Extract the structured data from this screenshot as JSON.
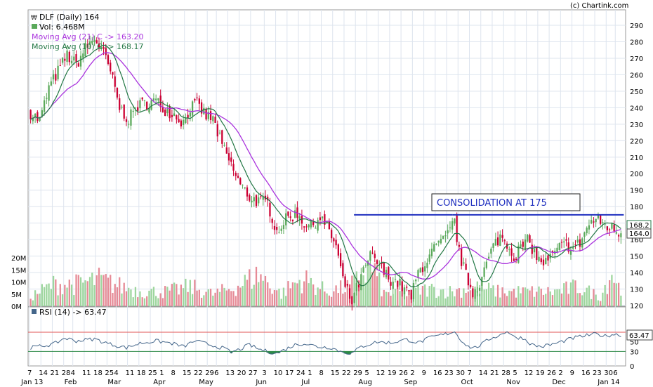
{
  "copyright": "(c) Chartink.com",
  "legend": {
    "symbol": "DLF (Daily) 164",
    "volume": "Vol: 6.468M",
    "ma21": "Moving Avg (21) C -> 163.20",
    "ma10": "Moving Avg (10) C -> 168.17",
    "rsi": "RSI (14) -> 63.47"
  },
  "annotation": {
    "text": "CONSOLIDATION AT 175",
    "level": 175
  },
  "colors": {
    "up": "#5aa95a",
    "down": "#cc0033",
    "ma21": "#aa33dd",
    "ma10": "#227744",
    "annotation_line": "#1f2fbf",
    "volume_up": "#9dd69d",
    "volume_down": "#e68a96",
    "rsi_line": "#44668a",
    "rsi_overbought": "#e05555",
    "rsi_oversold": "#2d8a47"
  },
  "chart_data": {
    "type": "candlestick",
    "price_axis": {
      "min": 120,
      "max": 290,
      "ticks": [
        120,
        130,
        140,
        150,
        160,
        170,
        180,
        190,
        200,
        210,
        220,
        230,
        240,
        250,
        260,
        270,
        280,
        290
      ]
    },
    "price_labels": {
      "last_ma10": "168.2",
      "last_close": "164.0"
    },
    "volume_axis": {
      "ticks": [
        "0M",
        "5M",
        "10M",
        "15M",
        "20M"
      ],
      "values": [
        0,
        5,
        10,
        15,
        20
      ]
    },
    "rsi_axis": {
      "ticks": [
        0,
        30,
        50,
        70
      ],
      "levels": {
        "overbought": 70,
        "oversold": 30
      },
      "last_label": "63.47"
    },
    "x_day_labels": [
      "7",
      "14",
      "21",
      "28",
      "4",
      "11",
      "18",
      "25",
      "4",
      "11",
      "18",
      "25",
      "1",
      "8",
      "15",
      "22",
      "29",
      "6",
      "13",
      "20",
      "27",
      "3",
      "10",
      "17",
      "24",
      "1",
      "8",
      "15",
      "22",
      "29",
      "5",
      "12",
      "19",
      "26",
      "2",
      "9",
      "16",
      "23",
      "30",
      "7",
      "14",
      "21",
      "28",
      "5",
      "12",
      "19",
      "26",
      "2",
      "9",
      "16",
      "23",
      "30",
      "6"
    ],
    "x_day_positions": [
      0,
      5,
      10,
      15,
      19,
      24,
      29,
      34,
      38,
      43,
      48,
      53,
      58,
      63,
      68,
      73,
      78,
      82,
      87,
      92,
      97,
      103,
      108,
      113,
      118,
      123,
      128,
      133,
      138,
      143,
      148,
      153,
      158,
      163,
      168,
      173,
      178,
      183,
      188,
      193,
      198,
      203,
      208,
      213,
      218,
      223,
      228,
      233,
      238,
      243,
      248,
      253,
      257
    ],
    "x_month_labels": [
      "Jan 13",
      "Feb",
      "Mar",
      "Apr",
      "May",
      "Jun",
      "Jul",
      "Aug",
      "Sep",
      "Oct",
      "Nov",
      "Dec",
      "Jan 14"
    ],
    "x_month_positions": [
      0,
      19,
      38,
      58,
      78,
      103,
      123,
      148,
      168,
      193,
      213,
      233,
      253
    ],
    "bars": 260,
    "close_anchors": [
      [
        0,
        237
      ],
      [
        4,
        232
      ],
      [
        8,
        252
      ],
      [
        12,
        262
      ],
      [
        16,
        272
      ],
      [
        20,
        266
      ],
      [
        24,
        276
      ],
      [
        28,
        282
      ],
      [
        31,
        276
      ],
      [
        35,
        262
      ],
      [
        39,
        240
      ],
      [
        43,
        233
      ],
      [
        47,
        241
      ],
      [
        51,
        243
      ],
      [
        55,
        244
      ],
      [
        59,
        239
      ],
      [
        63,
        236
      ],
      [
        67,
        231
      ],
      [
        70,
        240
      ],
      [
        73,
        242
      ],
      [
        77,
        235
      ],
      [
        80,
        233
      ],
      [
        84,
        217
      ],
      [
        88,
        205
      ],
      [
        92,
        193
      ],
      [
        96,
        186
      ],
      [
        100,
        183
      ],
      [
        104,
        182
      ],
      [
        108,
        165
      ],
      [
        111,
        171
      ],
      [
        114,
        174
      ],
      [
        117,
        176
      ],
      [
        120,
        170
      ],
      [
        123,
        168
      ],
      [
        127,
        174
      ],
      [
        131,
        165
      ],
      [
        134,
        156
      ],
      [
        137,
        135
      ],
      [
        141,
        122
      ],
      [
        143,
        130
      ],
      [
        146,
        140
      ],
      [
        149,
        150
      ],
      [
        152,
        146
      ],
      [
        155,
        140
      ],
      [
        158,
        136
      ],
      [
        161,
        134
      ],
      [
        164,
        130
      ],
      [
        167,
        125
      ],
      [
        170,
        140
      ],
      [
        174,
        148
      ],
      [
        178,
        156
      ],
      [
        182,
        160
      ],
      [
        186,
        171
      ],
      [
        188,
        152
      ],
      [
        191,
        138
      ],
      [
        194,
        128
      ],
      [
        197,
        134
      ],
      [
        200,
        145
      ],
      [
        203,
        156
      ],
      [
        206,
        162
      ],
      [
        209,
        158
      ],
      [
        212,
        150
      ],
      [
        215,
        155
      ],
      [
        218,
        159
      ],
      [
        220,
        155
      ],
      [
        223,
        147
      ],
      [
        226,
        146
      ],
      [
        229,
        150
      ],
      [
        232,
        155
      ],
      [
        235,
        157
      ],
      [
        238,
        155
      ],
      [
        241,
        158
      ],
      [
        244,
        167
      ],
      [
        247,
        172
      ],
      [
        250,
        171
      ],
      [
        253,
        168
      ],
      [
        256,
        166
      ],
      [
        259,
        164
      ]
    ],
    "volume_anchors": [
      [
        0,
        4
      ],
      [
        10,
        9
      ],
      [
        20,
        9
      ],
      [
        30,
        11
      ],
      [
        40,
        8
      ],
      [
        50,
        6
      ],
      [
        60,
        6
      ],
      [
        70,
        8
      ],
      [
        80,
        5
      ],
      [
        90,
        8
      ],
      [
        100,
        13
      ],
      [
        110,
        5
      ],
      [
        115,
        9
      ],
      [
        120,
        11
      ],
      [
        130,
        6
      ],
      [
        140,
        8
      ],
      [
        145,
        12
      ],
      [
        150,
        16
      ],
      [
        155,
        5
      ],
      [
        165,
        6
      ],
      [
        175,
        7
      ],
      [
        185,
        6
      ],
      [
        195,
        8
      ],
      [
        205,
        6
      ],
      [
        210,
        6
      ],
      [
        220,
        6
      ],
      [
        230,
        6
      ],
      [
        240,
        8
      ],
      [
        250,
        4
      ],
      [
        255,
        14
      ],
      [
        259,
        6
      ]
    ],
    "rsi_anchors": [
      [
        0,
        38
      ],
      [
        10,
        45
      ],
      [
        15,
        58
      ],
      [
        20,
        52
      ],
      [
        28,
        56
      ],
      [
        35,
        45
      ],
      [
        42,
        38
      ],
      [
        48,
        47
      ],
      [
        55,
        52
      ],
      [
        62,
        47
      ],
      [
        67,
        40
      ],
      [
        72,
        52
      ],
      [
        78,
        45
      ],
      [
        85,
        36
      ],
      [
        88,
        28
      ],
      [
        92,
        35
      ],
      [
        96,
        44
      ],
      [
        100,
        35
      ],
      [
        104,
        30
      ],
      [
        108,
        26
      ],
      [
        112,
        35
      ],
      [
        116,
        44
      ],
      [
        120,
        47
      ],
      [
        126,
        40
      ],
      [
        132,
        38
      ],
      [
        136,
        30
      ],
      [
        141,
        26
      ],
      [
        145,
        40
      ],
      [
        152,
        50
      ],
      [
        158,
        48
      ],
      [
        165,
        55
      ],
      [
        170,
        48
      ],
      [
        176,
        60
      ],
      [
        182,
        66
      ],
      [
        186,
        72
      ],
      [
        188,
        58
      ],
      [
        192,
        40
      ],
      [
        195,
        38
      ],
      [
        198,
        45
      ],
      [
        202,
        58
      ],
      [
        206,
        64
      ],
      [
        209,
        73
      ],
      [
        212,
        60
      ],
      [
        216,
        58
      ],
      [
        220,
        44
      ],
      [
        224,
        40
      ],
      [
        230,
        46
      ],
      [
        236,
        55
      ],
      [
        240,
        60
      ],
      [
        245,
        64
      ],
      [
        248,
        66
      ],
      [
        252,
        62
      ],
      [
        256,
        66
      ],
      [
        259,
        64
      ]
    ]
  }
}
